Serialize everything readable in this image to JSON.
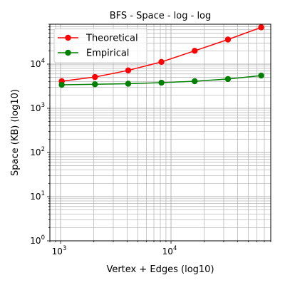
{
  "chart_data": {
    "type": "line",
    "title": "BFS - Space - log - log",
    "xlabel": "Vertex + Edges (log10)",
    "ylabel": "Space (KB) (log10)",
    "xscale": "log",
    "yscale": "log",
    "xlim": [
      800,
      80000
    ],
    "ylim": [
      1,
      80000
    ],
    "grid": true,
    "legend_position": "upper-left",
    "x_tick_labels": [
      {
        "base": "10",
        "exp": "3",
        "value": 1000
      },
      {
        "base": "10",
        "exp": "4",
        "value": 10000
      }
    ],
    "y_tick_labels": [
      {
        "base": "10",
        "exp": "0",
        "value": 1
      },
      {
        "base": "10",
        "exp": "1",
        "value": 10
      },
      {
        "base": "10",
        "exp": "2",
        "value": 100
      },
      {
        "base": "10",
        "exp": "3",
        "value": 1000
      },
      {
        "base": "10",
        "exp": "4",
        "value": 10000
      }
    ],
    "x": [
      1024,
      2048,
      4096,
      8192,
      16384,
      32768,
      65536
    ],
    "series": [
      {
        "name": "Theoretical",
        "color": "#ff0000",
        "values": [
          4100,
          5100,
          7200,
          11200,
          20000,
          36000,
          68000
        ]
      },
      {
        "name": "Empirical",
        "color": "#008000",
        "values": [
          3400,
          3500,
          3600,
          3800,
          4100,
          4600,
          5500
        ]
      }
    ]
  }
}
